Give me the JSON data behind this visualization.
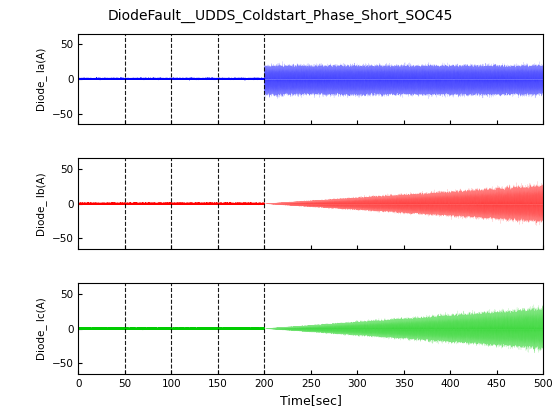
{
  "title": "DiodeFault__UDDS_Coldstart_Phase_Short_SOC45",
  "xlabel": "Time[sec]",
  "ylabels": [
    "Diode_ Ia(A)",
    "Diode_ Ib(A)",
    "Diode_ Ic(A)"
  ],
  "colors": [
    "blue",
    "red",
    "#00cc00"
  ],
  "xlim": [
    0,
    500
  ],
  "ylim": [
    -65,
    65
  ],
  "yticks": [
    -50,
    0,
    50
  ],
  "xticks": [
    0,
    50,
    100,
    150,
    200,
    250,
    300,
    350,
    400,
    450,
    500
  ],
  "vlines": [
    50,
    100,
    150,
    200
  ],
  "fault_start": 200,
  "n_points": 80000,
  "background_color": "#ffffff",
  "title_fontsize": 10,
  "ylabel_format": [
    "Diode_ Ia(A)",
    "Diode_ Ib(A)",
    "Diode_ Ic(A)"
  ]
}
